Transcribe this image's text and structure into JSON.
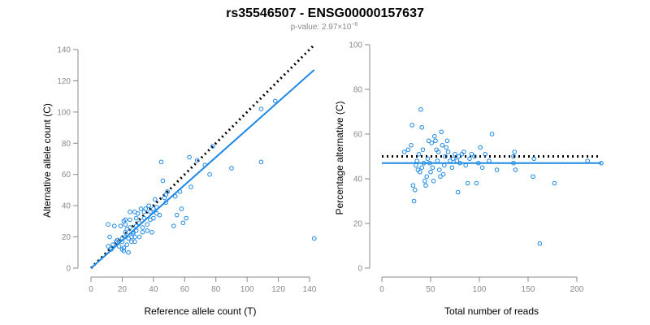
{
  "title": "rs35546507 - ENSG00000157637",
  "subtitle": "p-value: 2.97×10",
  "subtitle_exp": "−6",
  "chart_data": [
    {
      "type": "scatter",
      "xlabel": "Reference allele count (T)",
      "ylabel": "Alternative allele count (C)",
      "xlim": [
        0,
        140
      ],
      "ylim": [
        0,
        140
      ],
      "xticks": [
        0,
        20,
        40,
        60,
        80,
        100,
        120,
        140
      ],
      "yticks": [
        0,
        20,
        40,
        60,
        80,
        100,
        120,
        140
      ],
      "grid": false,
      "points": [
        [
          11,
          28
        ],
        [
          11,
          14
        ],
        [
          12,
          20
        ],
        [
          13,
          12
        ],
        [
          14,
          15
        ],
        [
          15,
          27
        ],
        [
          16,
          17
        ],
        [
          17,
          18
        ],
        [
          18,
          14
        ],
        [
          19,
          27
        ],
        [
          20,
          19
        ],
        [
          20,
          17
        ],
        [
          20,
          12
        ],
        [
          21,
          11
        ],
        [
          21,
          30
        ],
        [
          21,
          13
        ],
        [
          22,
          23
        ],
        [
          22,
          20
        ],
        [
          22,
          28
        ],
        [
          22,
          31
        ],
        [
          23,
          15
        ],
        [
          23,
          25
        ],
        [
          24,
          10
        ],
        [
          24,
          19
        ],
        [
          25,
          31
        ],
        [
          25,
          36
        ],
        [
          25,
          26
        ],
        [
          26,
          20
        ],
        [
          26,
          17
        ],
        [
          27,
          22
        ],
        [
          27,
          23
        ],
        [
          28,
          17
        ],
        [
          28,
          20
        ],
        [
          28,
          36
        ],
        [
          29,
          32
        ],
        [
          29,
          27
        ],
        [
          29,
          24
        ],
        [
          30,
          35
        ],
        [
          31,
          20
        ],
        [
          31,
          29
        ],
        [
          32,
          38
        ],
        [
          33,
          26
        ],
        [
          33,
          23
        ],
        [
          34,
          36
        ],
        [
          34,
          32
        ],
        [
          35,
          38
        ],
        [
          36,
          24
        ],
        [
          36,
          28
        ],
        [
          37,
          40
        ],
        [
          38,
          31
        ],
        [
          38,
          36
        ],
        [
          39,
          23
        ],
        [
          40,
          32
        ],
        [
          40,
          38
        ],
        [
          41,
          44
        ],
        [
          42,
          39
        ],
        [
          42,
          35
        ],
        [
          44,
          34
        ],
        [
          45,
          68
        ],
        [
          46,
          56
        ],
        [
          47,
          45
        ],
        [
          48,
          42
        ],
        [
          48,
          47
        ],
        [
          49,
          49
        ],
        [
          53,
          27
        ],
        [
          54,
          46
        ],
        [
          55,
          34
        ],
        [
          57,
          49
        ],
        [
          58,
          38
        ],
        [
          59,
          29
        ],
        [
          61,
          32
        ],
        [
          63,
          71
        ],
        [
          64,
          52
        ],
        [
          68,
          69
        ],
        [
          73,
          66
        ],
        [
          76,
          60
        ],
        [
          78,
          78
        ],
        [
          90,
          64
        ],
        [
          109,
          68
        ],
        [
          109,
          102
        ],
        [
          118,
          107
        ],
        [
          143,
          19
        ]
      ],
      "fit": {
        "x": [
          0,
          143
        ],
        "y": [
          0,
          127
        ]
      },
      "reference": {
        "x": [
          0,
          143
        ],
        "y": [
          0,
          143
        ]
      }
    },
    {
      "type": "scatter",
      "xlabel": "Total number of reads",
      "ylabel": "Percentage alternative (C)",
      "xlim": [
        0,
        225
      ],
      "ylim": [
        0,
        100
      ],
      "xticks": [
        0,
        50,
        100,
        150,
        200
      ],
      "yticks": [
        0,
        20,
        40,
        60,
        80,
        100
      ],
      "grid": false,
      "points": [
        [
          23,
          52
        ],
        [
          27,
          53
        ],
        [
          30,
          55
        ],
        [
          31,
          64
        ],
        [
          32,
          37
        ],
        [
          33,
          30
        ],
        [
          34,
          35
        ],
        [
          35,
          46
        ],
        [
          36,
          48
        ],
        [
          37,
          44
        ],
        [
          38,
          51
        ],
        [
          39,
          43
        ],
        [
          40,
          71
        ],
        [
          41,
          45
        ],
        [
          41,
          63
        ],
        [
          42,
          53
        ],
        [
          43,
          47
        ],
        [
          44,
          39
        ],
        [
          45,
          37
        ],
        [
          46,
          41
        ],
        [
          47,
          49
        ],
        [
          48,
          57
        ],
        [
          49,
          47
        ],
        [
          50,
          43
        ],
        [
          51,
          56
        ],
        [
          52,
          45
        ],
        [
          53,
          39
        ],
        [
          54,
          59
        ],
        [
          55,
          57
        ],
        [
          56,
          53
        ],
        [
          57,
          48
        ],
        [
          58,
          52
        ],
        [
          59,
          44
        ],
        [
          60,
          41
        ],
        [
          61,
          61
        ],
        [
          62,
          55
        ],
        [
          63,
          42
        ],
        [
          64,
          46
        ],
        [
          65,
          50
        ],
        [
          66,
          54
        ],
        [
          67,
          57
        ],
        [
          68,
          52
        ],
        [
          70,
          48
        ],
        [
          72,
          45
        ],
        [
          73,
          49
        ],
        [
          75,
          51
        ],
        [
          77,
          48
        ],
        [
          78,
          34
        ],
        [
          79,
          50
        ],
        [
          80,
          47
        ],
        [
          82,
          51
        ],
        [
          84,
          52
        ],
        [
          86,
          46
        ],
        [
          88,
          38
        ],
        [
          90,
          49
        ],
        [
          92,
          51
        ],
        [
          95,
          50
        ],
        [
          97,
          38
        ],
        [
          99,
          47
        ],
        [
          101,
          54
        ],
        [
          103,
          45
        ],
        [
          106,
          51
        ],
        [
          110,
          48
        ],
        [
          113,
          60
        ],
        [
          118,
          44
        ],
        [
          135,
          47
        ],
        [
          135,
          50
        ],
        [
          136,
          52
        ],
        [
          137,
          44
        ],
        [
          155,
          41
        ],
        [
          156,
          49
        ],
        [
          162,
          11
        ],
        [
          177,
          38
        ],
        [
          211,
          48
        ],
        [
          225,
          47
        ]
      ],
      "fit": {
        "x": [
          0,
          225
        ],
        "y": [
          47,
          47
        ]
      },
      "reference": {
        "x": [
          0,
          225
        ],
        "y": [
          50,
          50
        ]
      }
    }
  ]
}
